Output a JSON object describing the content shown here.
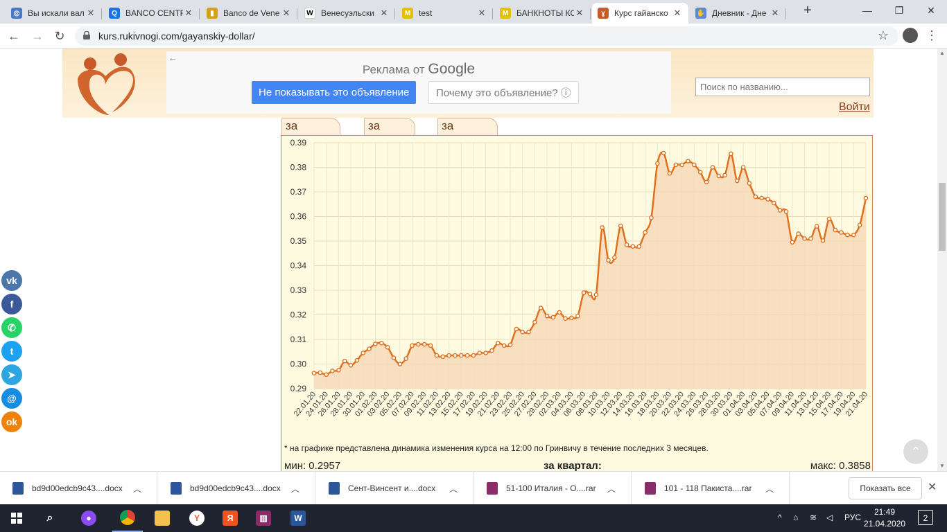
{
  "browser": {
    "tabs": [
      {
        "title": "Вы искали вал",
        "favicon": "yandex-search-icon",
        "color": "#4a7ac7",
        "glyph": "◎"
      },
      {
        "title": "BANCO CENTR",
        "favicon": "search-q-icon",
        "color": "#1a73e8",
        "glyph": "Q"
      },
      {
        "title": "Banco de Vene",
        "favicon": "flag-icon",
        "color": "#d4a017",
        "glyph": "▮"
      },
      {
        "title": "Венесуэльски",
        "favicon": "wikipedia-icon",
        "color": "#ffffff",
        "glyph": "W"
      },
      {
        "title": "test",
        "favicon": "m-icon",
        "color": "#e3c000",
        "glyph": "M"
      },
      {
        "title": "БАНКНОТЫ КС",
        "favicon": "m-icon",
        "color": "#e3c000",
        "glyph": "M"
      },
      {
        "title": "Курс гайанско",
        "favicon": "rukivnogi-icon",
        "color": "#c85a2a",
        "glyph": "ɣ"
      },
      {
        "title": "Дневник - Дне",
        "favicon": "hand-icon",
        "color": "#5a8ad8",
        "glyph": "✋"
      }
    ],
    "active_tab": 6,
    "url": "kurs.rukivnogi.com/gayanskiy-dollar/"
  },
  "header": {
    "ad_back": "←",
    "ad_by": "Реклама от",
    "ad_brand": "Google",
    "ad_hide": "Не показывать это объявление",
    "ad_why": "Почему это объявление? ⓘ",
    "search_placeholder": "Поиск по названию...",
    "login": "Войти"
  },
  "chart_tabs": [
    "за неделю",
    "за месяц",
    "за квартал"
  ],
  "chart_data": {
    "type": "area",
    "x": [
      "22.01.20",
      "23.01.20",
      "24.01.20",
      "25.01.20",
      "26.01.20",
      "27.01.20",
      "28.01.20",
      "29.01.20",
      "30.01.20",
      "31.01.20",
      "01.02.20",
      "02.02.20",
      "03.02.20",
      "04.02.20",
      "05.02.20",
      "06.02.20",
      "07.02.20",
      "08.02.20",
      "09.02.20",
      "10.02.20",
      "11.02.20",
      "12.02.20",
      "13.02.20",
      "14.02.20",
      "15.02.20",
      "16.02.20",
      "17.02.20",
      "18.02.20",
      "19.02.20",
      "20.02.20",
      "21.02.20",
      "22.02.20",
      "23.02.20",
      "24.02.20",
      "25.02.20",
      "26.02.20",
      "27.02.20",
      "28.02.20",
      "29.02.20",
      "01.03.20",
      "02.03.20",
      "03.03.20",
      "04.03.20",
      "05.03.20",
      "06.03.20",
      "07.03.20",
      "08.03.20",
      "09.03.20",
      "10.03.20",
      "11.03.20",
      "12.03.20",
      "13.03.20",
      "14.03.20",
      "15.03.20",
      "16.03.20",
      "17.03.20",
      "18.03.20",
      "19.03.20",
      "20.03.20",
      "21.03.20",
      "22.03.20",
      "23.03.20",
      "24.03.20",
      "25.03.20",
      "26.03.20",
      "27.03.20",
      "28.03.20",
      "29.03.20",
      "30.03.20",
      "31.03.20",
      "01.04.20",
      "02.04.20",
      "03.04.20",
      "04.04.20",
      "05.04.20",
      "06.04.20",
      "07.04.20",
      "08.04.20",
      "09.04.20",
      "10.04.20",
      "11.04.20",
      "12.04.20",
      "13.04.20",
      "14.04.20",
      "15.04.20",
      "16.04.20",
      "17.04.20",
      "18.04.20",
      "19.04.20",
      "20.04.20",
      "21.04.20"
    ],
    "values": [
      0.2963,
      0.2965,
      0.2957,
      0.2972,
      0.2975,
      0.3012,
      0.2995,
      0.3015,
      0.3045,
      0.3062,
      0.3082,
      0.3085,
      0.3068,
      0.3025,
      0.3,
      0.3022,
      0.3075,
      0.308,
      0.308,
      0.3075,
      0.3035,
      0.303,
      0.3035,
      0.3035,
      0.3035,
      0.3035,
      0.3035,
      0.3045,
      0.3045,
      0.3055,
      0.3085,
      0.3075,
      0.3078,
      0.3142,
      0.313,
      0.313,
      0.317,
      0.3228,
      0.3195,
      0.319,
      0.321,
      0.3185,
      0.3188,
      0.3195,
      0.329,
      0.3285,
      0.3282,
      0.3555,
      0.3422,
      0.3433,
      0.3562,
      0.3485,
      0.3478,
      0.3478,
      0.3535,
      0.3595,
      0.3815,
      0.3858,
      0.3775,
      0.381,
      0.381,
      0.3825,
      0.381,
      0.378,
      0.374,
      0.38,
      0.3765,
      0.3768,
      0.3855,
      0.3745,
      0.38,
      0.3735,
      0.368,
      0.3675,
      0.367,
      0.3655,
      0.3625,
      0.362,
      0.3495,
      0.353,
      0.351,
      0.351,
      0.356,
      0.3502,
      0.359,
      0.3545,
      0.3535,
      0.3525,
      0.3525,
      0.3565,
      0.3675
    ],
    "ylim": [
      0.29,
      0.39
    ],
    "yticks": [
      "0.29",
      "0.30",
      "0.31",
      "0.32",
      "0.33",
      "0.34",
      "0.35",
      "0.36",
      "0.37",
      "0.38",
      "0.39"
    ],
    "xticks_shown": [
      "22.01.20",
      "24.01.20",
      "26.01.20",
      "28.01.20",
      "30.01.20",
      "01.02.20",
      "03.02.20",
      "05.02.20",
      "07.02.20",
      "09.02.20",
      "11.02.20",
      "13.02.20",
      "15.02.20",
      "17.02.20",
      "19.02.20",
      "21.02.20",
      "23.02.20",
      "25.02.20",
      "27.02.20",
      "29.02.20",
      "02.03.20",
      "04.03.20",
      "06.03.20",
      "08.03.20",
      "10.03.20",
      "12.03.20",
      "14.03.20",
      "16.03.20",
      "18.03.20",
      "20.03.20",
      "22.03.20",
      "24.03.20",
      "26.03.20",
      "28.03.20",
      "30.03.20",
      "01.04.20",
      "03.04.20",
      "05.04.20",
      "07.04.20",
      "09.04.20",
      "11.04.20",
      "13.04.20",
      "15.04.20",
      "17.04.20",
      "19.04.20",
      "21.04.20"
    ],
    "grid": true,
    "line_color": "#e0701e",
    "fill_color": "#f7d9b8"
  },
  "chart_note": "* на графике представлена динамика изменения курса на 12:00 по Гринвичу в течение последних 3 месяцев.",
  "stats": {
    "min": "мин: 0.2957",
    "period": "за квартал:",
    "max": "макс: 0.3858"
  },
  "social": [
    {
      "name": "vk-icon",
      "glyph": "vk",
      "color": "#4a76a8"
    },
    {
      "name": "facebook-icon",
      "glyph": "f",
      "color": "#3b5998"
    },
    {
      "name": "whatsapp-icon",
      "glyph": "✆",
      "color": "#25d366"
    },
    {
      "name": "twitter-icon",
      "glyph": "t",
      "color": "#1da1f2"
    },
    {
      "name": "telegram-icon",
      "glyph": "➤",
      "color": "#2ca5e0"
    },
    {
      "name": "mail-icon",
      "glyph": "@",
      "color": "#168de2"
    },
    {
      "name": "odnoklassniki-icon",
      "glyph": "ok",
      "color": "#ee8208"
    }
  ],
  "downloads": [
    {
      "name": "bd9d00edcb9c43....docx",
      "type": "word",
      "color": "#2b579a"
    },
    {
      "name": "bd9d00edcb9c43....docx",
      "type": "word",
      "color": "#2b579a"
    },
    {
      "name": "Сент-Винсент и....docx",
      "type": "word",
      "color": "#2b579a"
    },
    {
      "name": "51-100 Италия - О....rar",
      "type": "rar",
      "color": "#8a2c6a"
    },
    {
      "name": "101 - 118 Пакиста....rar",
      "type": "rar",
      "color": "#8a2c6a"
    }
  ],
  "downloads_show_all": "Показать все",
  "taskbar": {
    "lang": "РУС",
    "time": "21:49",
    "date": "21.04.2020",
    "notifications": "2"
  }
}
